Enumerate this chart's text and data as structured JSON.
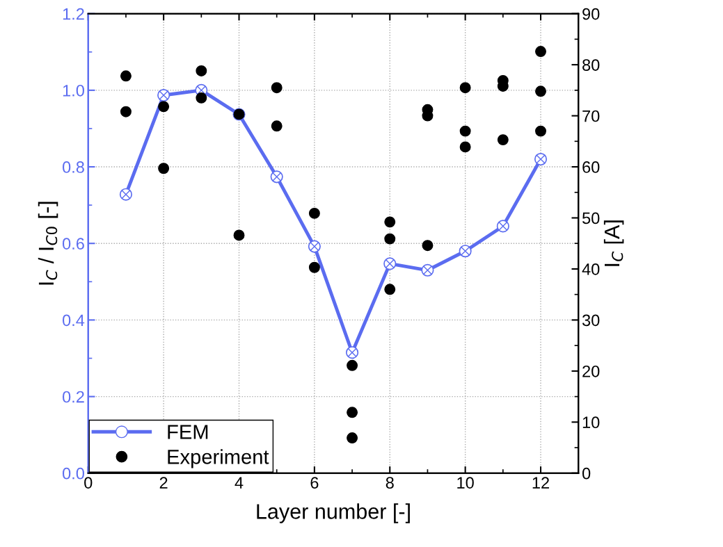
{
  "chart_data": {
    "type": "line",
    "xlabel": "Layer number [-]",
    "ylabel": "I$_{C}$ / I$_{C0}$ [-]",
    "y2label": "I$_{C}$ [A]",
    "xlim": [
      0,
      13
    ],
    "xticks": [
      0,
      2,
      4,
      6,
      8,
      10,
      12
    ],
    "ylim": [
      0,
      1.2
    ],
    "yticks": [
      {
        "value": 0,
        "label": "0.0"
      },
      0.2,
      0.4,
      0.6,
      0.8,
      {
        "value": 1,
        "label": "1.0"
      },
      1.2
    ],
    "y2lim": [
      0,
      90
    ],
    "y2ticks": [
      0,
      10,
      20,
      30,
      40,
      50,
      60,
      70,
      80,
      90
    ],
    "grid": true,
    "legend": "bottom left",
    "series": [
      {
        "name": "FEM",
        "color": "#5b6cf0",
        "marker": "circle",
        "line_style": "solid",
        "x": [
          1,
          2,
          3,
          4,
          5,
          6,
          7,
          8,
          9,
          10,
          11,
          12
        ],
        "values": [
          0.728,
          0.987,
          1.0,
          0.937,
          0.774,
          0.592,
          0.315,
          0.547,
          0.53,
          0.58,
          0.645,
          0.82
        ]
      },
      {
        "name": "Experiment",
        "type": "scatter",
        "color": "#000000",
        "marker": "circle",
        "axis": "y2",
        "x": [
          1,
          1,
          2,
          2,
          3,
          3,
          4,
          4,
          5,
          5,
          6,
          6,
          7,
          7,
          7,
          8,
          8,
          8,
          9,
          9,
          9,
          10,
          10,
          10,
          11,
          11,
          11,
          12,
          12,
          12
        ],
        "values": [
          77.8,
          70.8,
          71.8,
          59.7,
          78.8,
          73.5,
          70.3,
          46.6,
          75.5,
          68.0,
          50.9,
          40.3,
          21.1,
          11.9,
          6.9,
          49.2,
          45.9,
          36.0,
          71.2,
          70.0,
          44.6,
          75.5,
          67.0,
          63.9,
          76.9,
          75.8,
          65.3,
          82.6,
          74.8,
          67.0
        ]
      }
    ]
  }
}
